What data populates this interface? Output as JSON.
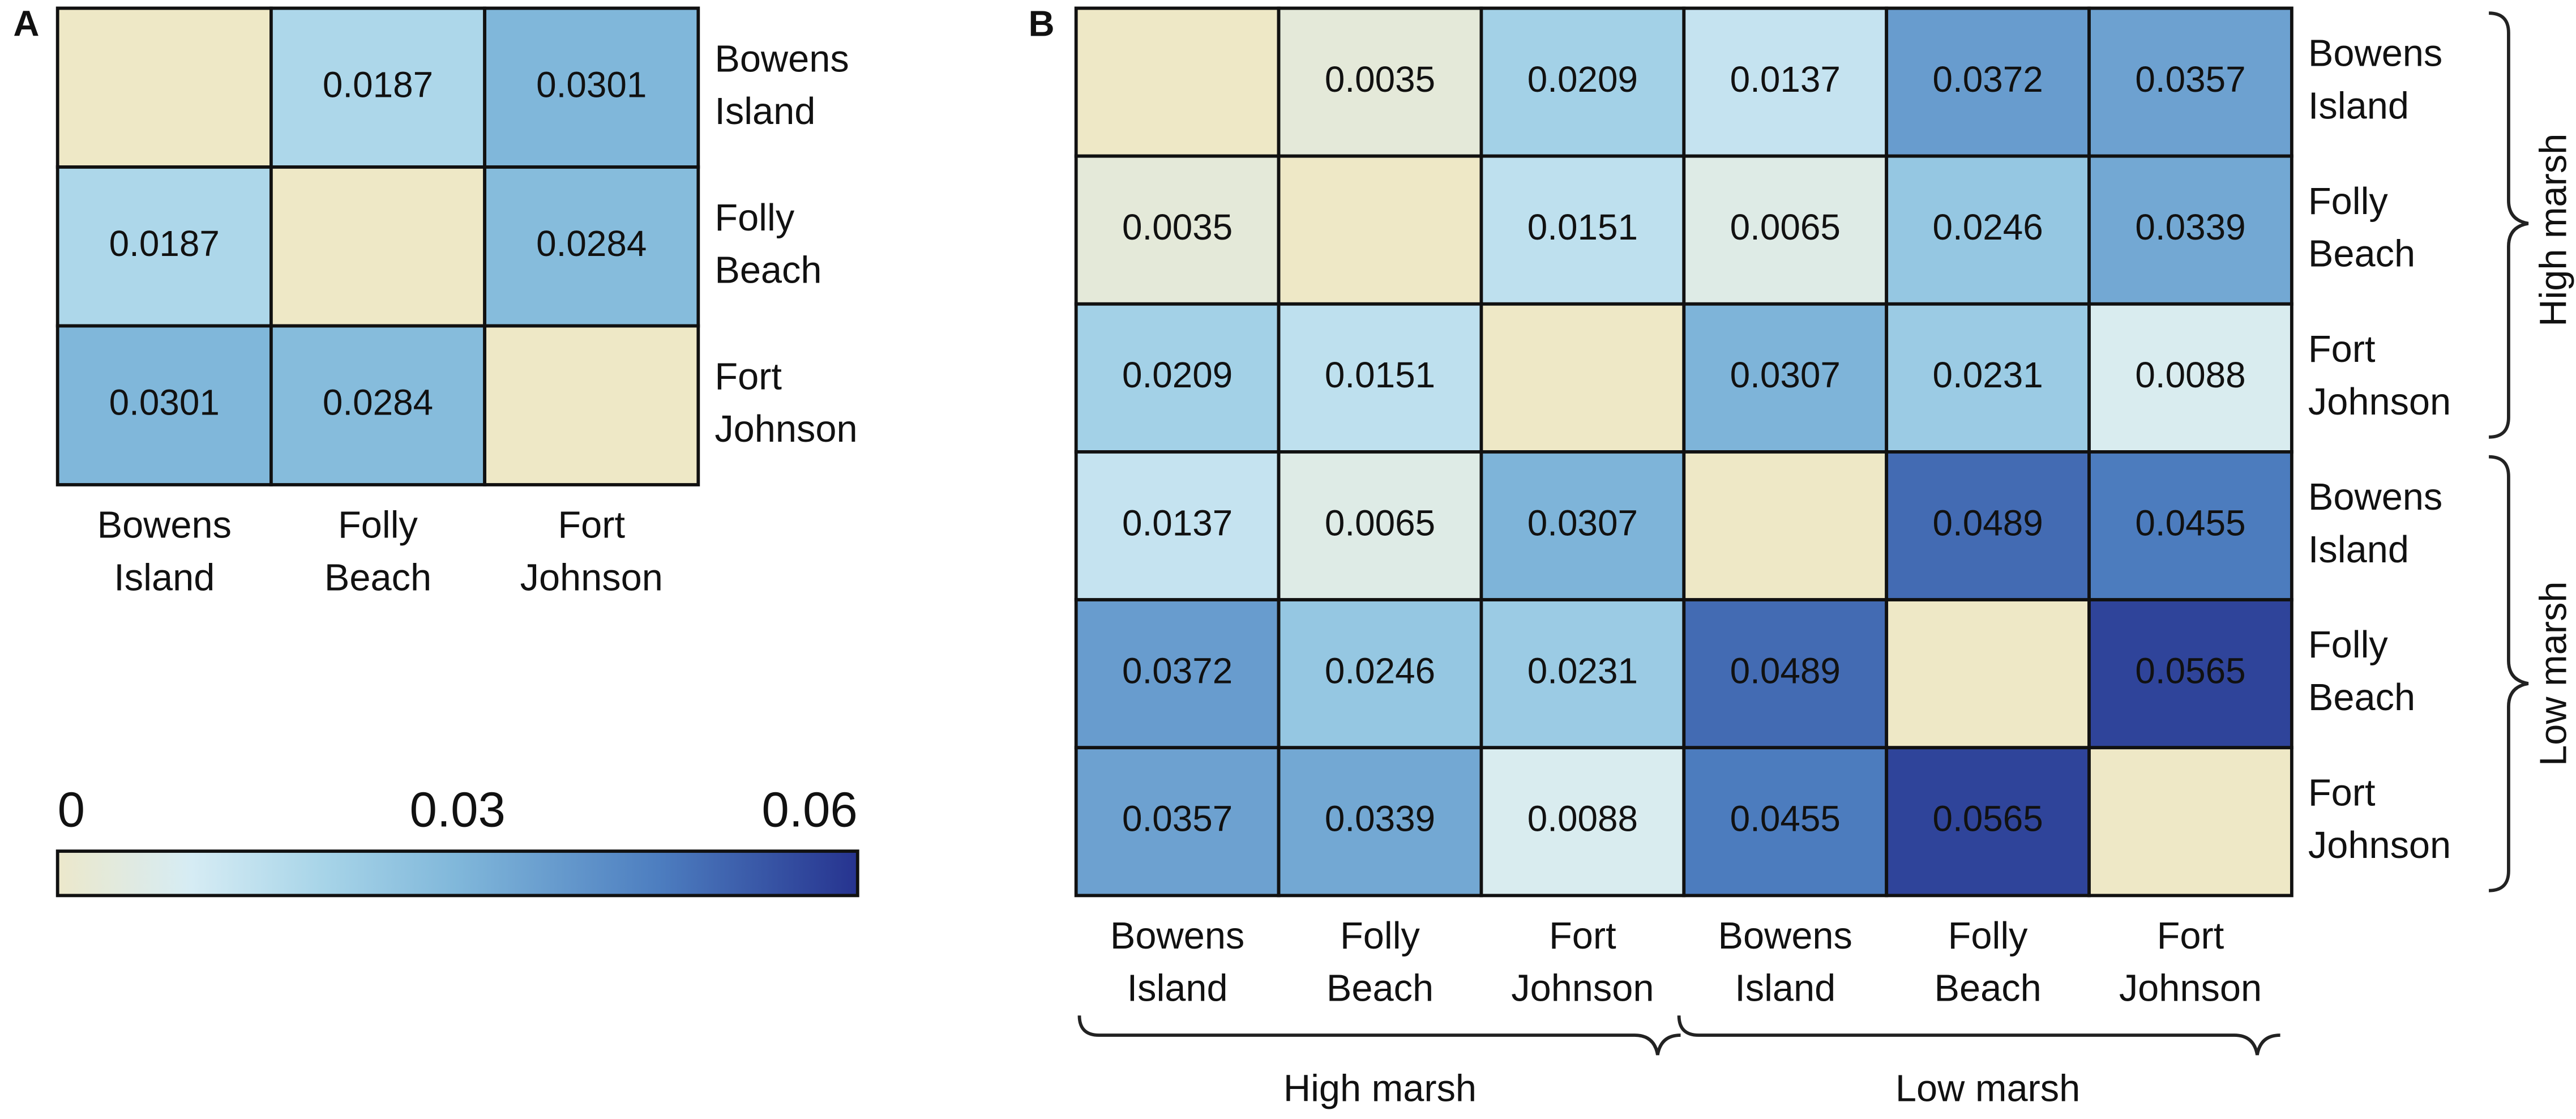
{
  "chart_data": [
    {
      "type": "heatmap",
      "panel_label": "A",
      "row_labels": [
        "Bowens Island",
        "Folly Beach",
        "Fort Johnson"
      ],
      "column_labels": [
        "Bowens Island",
        "Folly Beach",
        "Fort Johnson"
      ],
      "values": [
        [
          null,
          0.0187,
          0.0301
        ],
        [
          0.0187,
          null,
          0.0284
        ],
        [
          0.0301,
          0.0284,
          null
        ]
      ],
      "clim": [
        0,
        0.06
      ],
      "colorbar_ticks": [
        0,
        0.03,
        0.06
      ],
      "colorscale": [
        [
          0,
          "#ece8cb"
        ],
        [
          0.01,
          "#d6ecf4"
        ],
        [
          0.02,
          "#a7d4e8"
        ],
        [
          0.03,
          "#80b7da"
        ],
        [
          0.045,
          "#4d7ec0"
        ],
        [
          0.06,
          "#26338f"
        ]
      ],
      "empty_color": "#eee8c6"
    },
    {
      "type": "heatmap",
      "panel_label": "B",
      "row_labels": [
        "Bowens Island",
        "Folly Beach",
        "Fort Johnson",
        "Bowens Island",
        "Folly Beach",
        "Fort Johnson"
      ],
      "column_labels": [
        "Bowens Island",
        "Folly Beach",
        "Fort Johnson",
        "Bowens Island",
        "Folly Beach",
        "Fort Johnson"
      ],
      "groups": [
        "High marsh",
        "Low marsh"
      ],
      "values": [
        [
          null,
          0.0035,
          0.0209,
          0.0137,
          0.0372,
          0.0357
        ],
        [
          0.0035,
          null,
          0.0151,
          0.0065,
          0.0246,
          0.0339
        ],
        [
          0.0209,
          0.0151,
          null,
          0.0307,
          0.0231,
          0.0088
        ],
        [
          0.0137,
          0.0065,
          0.0307,
          null,
          0.0489,
          0.0455
        ],
        [
          0.0372,
          0.0246,
          0.0231,
          0.0489,
          null,
          0.0565
        ],
        [
          0.0357,
          0.0339,
          0.0088,
          0.0455,
          0.0565,
          null
        ]
      ],
      "clim": [
        0,
        0.06
      ],
      "colorscale": [
        [
          0,
          "#ece8cb"
        ],
        [
          0.01,
          "#d6ecf4"
        ],
        [
          0.02,
          "#a7d4e8"
        ],
        [
          0.03,
          "#80b7da"
        ],
        [
          0.045,
          "#4d7ec0"
        ],
        [
          0.06,
          "#26338f"
        ]
      ],
      "empty_color": "#eee8c6"
    }
  ]
}
